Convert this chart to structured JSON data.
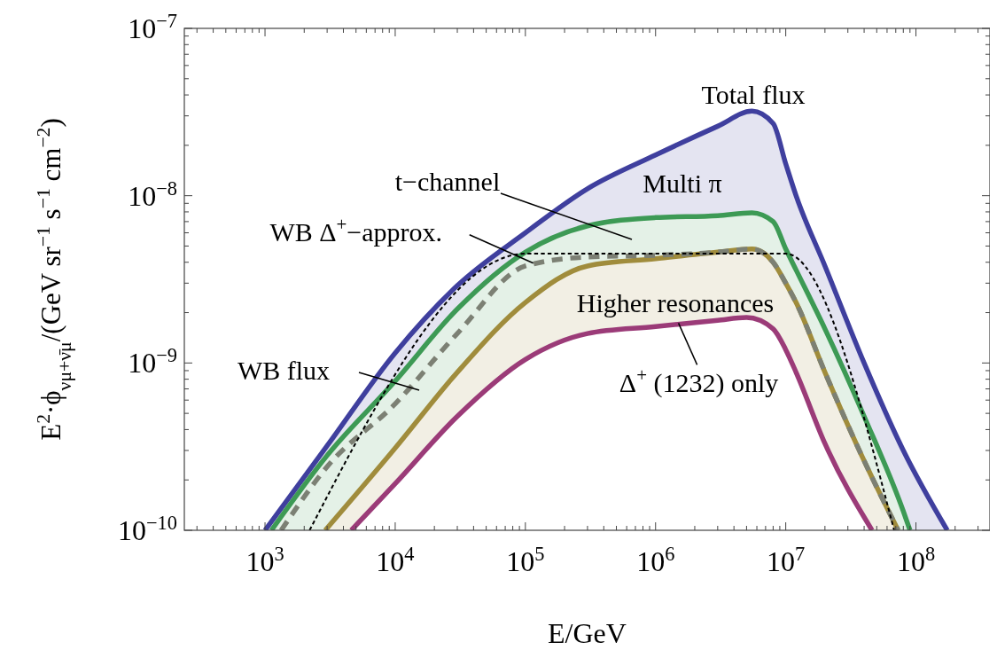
{
  "chart_data": {
    "type": "line",
    "xlabel": "E/GeV",
    "ylabel": "E$^{2}$·ϕ$_{νμ+ν̄μ}$/(GeV sr$^{−1}$ s$^{−1}$ cm$^{−2}$)",
    "log": "xy",
    "grid": false,
    "xlim": [
      240,
      370000000
    ],
    "ylim": [
      1e-10,
      1e-07
    ],
    "xticks": [
      {
        "value": 300,
        "label": null
      },
      {
        "value": 400,
        "label": null
      },
      {
        "value": 500,
        "label": null
      },
      {
        "value": 600,
        "label": null
      },
      {
        "value": 700,
        "label": null
      },
      {
        "value": 800,
        "label": null
      },
      {
        "value": 900,
        "label": null
      },
      {
        "value": 1000,
        "label": "10$^{3}$"
      },
      {
        "value": 2000,
        "label": null
      },
      {
        "value": 3000,
        "label": null
      },
      {
        "value": 4000,
        "label": null
      },
      {
        "value": 5000,
        "label": null
      },
      {
        "value": 6000,
        "label": null
      },
      {
        "value": 7000,
        "label": null
      },
      {
        "value": 8000,
        "label": null
      },
      {
        "value": 9000,
        "label": null
      },
      {
        "value": 10000,
        "label": "10$^{4}$"
      },
      {
        "value": 20000,
        "label": null
      },
      {
        "value": 30000,
        "label": null
      },
      {
        "value": 40000,
        "label": null
      },
      {
        "value": 50000,
        "label": null
      },
      {
        "value": 60000,
        "label": null
      },
      {
        "value": 70000,
        "label": null
      },
      {
        "value": 80000,
        "label": null
      },
      {
        "value": 90000,
        "label": null
      },
      {
        "value": 100000,
        "label": "10$^{5}$"
      },
      {
        "value": 200000,
        "label": null
      },
      {
        "value": 300000,
        "label": null
      },
      {
        "value": 400000,
        "label": null
      },
      {
        "value": 500000,
        "label": null
      },
      {
        "value": 600000,
        "label": null
      },
      {
        "value": 700000,
        "label": null
      },
      {
        "value": 800000,
        "label": null
      },
      {
        "value": 900000,
        "label": null
      },
      {
        "value": 1000000,
        "label": "10$^{6}$"
      },
      {
        "value": 2000000,
        "label": null
      },
      {
        "value": 3000000,
        "label": null
      },
      {
        "value": 4000000,
        "label": null
      },
      {
        "value": 5000000,
        "label": null
      },
      {
        "value": 6000000,
        "label": null
      },
      {
        "value": 7000000,
        "label": null
      },
      {
        "value": 8000000,
        "label": null
      },
      {
        "value": 9000000,
        "label": null
      },
      {
        "value": 10000000,
        "label": "10$^{7}$"
      },
      {
        "value": 20000000,
        "label": null
      },
      {
        "value": 30000000,
        "label": null
      },
      {
        "value": 40000000,
        "label": null
      },
      {
        "value": 50000000,
        "label": null
      },
      {
        "value": 60000000,
        "label": null
      },
      {
        "value": 70000000,
        "label": null
      },
      {
        "value": 80000000,
        "label": null
      },
      {
        "value": 90000000,
        "label": null
      },
      {
        "value": 100000000,
        "label": "10$^{8}$"
      },
      {
        "value": 200000000,
        "label": null
      },
      {
        "value": 300000000,
        "label": null
      }
    ],
    "yticks": [
      {
        "value": 1e-10,
        "label": "10$^{−10}$"
      },
      {
        "value": 2e-10,
        "label": null
      },
      {
        "value": 3e-10,
        "label": null
      },
      {
        "value": 4e-10,
        "label": null
      },
      {
        "value": 5e-10,
        "label": null
      },
      {
        "value": 6e-10,
        "label": null
      },
      {
        "value": 7e-10,
        "label": null
      },
      {
        "value": 8e-10,
        "label": null
      },
      {
        "value": 9e-10,
        "label": null
      },
      {
        "value": 1e-09,
        "label": "10$^{−9}$"
      },
      {
        "value": 2e-09,
        "label": null
      },
      {
        "value": 3e-09,
        "label": null
      },
      {
        "value": 4e-09,
        "label": null
      },
      {
        "value": 5e-09,
        "label": null
      },
      {
        "value": 6e-09,
        "label": null
      },
      {
        "value": 7e-09,
        "label": null
      },
      {
        "value": 8e-09,
        "label": null
      },
      {
        "value": 9e-09,
        "label": null
      },
      {
        "value": 1e-08,
        "label": "10$^{−8}$"
      },
      {
        "value": 2e-08,
        "label": null
      },
      {
        "value": 3e-08,
        "label": null
      },
      {
        "value": 4e-08,
        "label": null
      },
      {
        "value": 5e-08,
        "label": null
      },
      {
        "value": 6e-08,
        "label": null
      },
      {
        "value": 7e-08,
        "label": null
      },
      {
        "value": 8e-08,
        "label": null
      },
      {
        "value": 9e-08,
        "label": null
      },
      {
        "value": 1e-07,
        "label": "10$^{−7}$"
      }
    ],
    "series": [
      {
        "type": "area",
        "color": "#3f3f9e",
        "x": [
          1000,
          3000,
          10000,
          30000,
          100000,
          300000,
          1000000,
          3000000,
          5500000,
          8000000,
          10000000,
          12000000,
          20000000,
          40000000,
          80000000,
          174000000
        ],
        "values": [
          1e-10,
          3.2e-10,
          1.15e-09,
          2.9e-09,
          6e-09,
          1.1e-08,
          1.75e-08,
          2.6e-08,
          3.2e-08,
          2.7e-08,
          1.55e-08,
          1e-08,
          3.8e-09,
          1e-09,
          3e-10,
          1e-10
        ]
      },
      {
        "type": "area",
        "color": "#3d9a55",
        "x": [
          1120,
          3000,
          10000,
          30000,
          100000,
          300000,
          1000000,
          3000000,
          5500000,
          8000000,
          10000000,
          12000000,
          20000000,
          40000000,
          80000000,
          90000000
        ],
        "values": [
          1e-10,
          2.8e-10,
          7.8e-10,
          2.1e-09,
          4.6e-09,
          6.6e-09,
          7.4e-09,
          7.6e-09,
          7.9e-09,
          7e-09,
          4.8e-09,
          3.6e-09,
          1.6e-09,
          4.8e-10,
          1.3e-10,
          1e-10
        ]
      },
      {
        "type": "area",
        "color": "#a08c3c",
        "x": [
          2900,
          10000,
          30000,
          100000,
          300000,
          1000000,
          3000000,
          5500000,
          8000000,
          10000000,
          12000000,
          20000000,
          40000000,
          73000000
        ],
        "values": [
          1e-10,
          3.1e-10,
          8.8e-10,
          2.3e-09,
          3.8e-09,
          4.2e-09,
          4.6e-09,
          4.8e-09,
          4e-09,
          3e-09,
          2.3e-09,
          8.8e-10,
          2.6e-10,
          1e-10
        ]
      },
      {
        "color": "#9b3b78",
        "x": [
          4600,
          10000,
          30000,
          100000,
          300000,
          1000000,
          3000000,
          5000000,
          8000000,
          10000000,
          12000000,
          20000000,
          46000000
        ],
        "values": [
          1e-10,
          1.9e-10,
          4.8e-10,
          1.05e-09,
          1.5e-09,
          1.65e-09,
          1.8e-09,
          1.87e-09,
          1.6e-09,
          1.2e-09,
          8.8e-10,
          3.3e-10,
          1e-10
        ]
      },
      {
        "color": "#7c8074",
        "line_style": "dashed",
        "x": [
          1330,
          3000,
          10000,
          30000,
          100000,
          300000,
          1000000,
          3000000,
          5500000,
          8000000,
          10000000,
          12000000,
          20000000,
          40000000,
          73000000
        ],
        "values": [
          1e-10,
          2.4e-10,
          5.7e-10,
          1.5e-09,
          3.8e-09,
          4.3e-09,
          4.4e-09,
          4.6e-09,
          4.8e-09,
          4e-09,
          3e-09,
          2.3e-09,
          8.8e-10,
          2.6e-10,
          1e-10
        ]
      },
      {
        "color": "#000000",
        "line_style": "dashed",
        "x": [
          2200,
          100000,
          10000000,
          68000000
        ],
        "values": [
          1e-10,
          4.5e-09,
          4.5e-09,
          1e-10
        ]
      }
    ],
    "annotations": [
      "Total flux",
      "Multi π",
      "t−channel",
      {
        "text": "WB Δ$^{+}$−approx.",
        "x": 115000,
        "y": 3.95e-09
      },
      "Higher resonances",
      "WB flux",
      {
        "text": "Δ$^{+}$ (1232) only",
        "x": 1500000,
        "y": 1.73e-09
      }
    ]
  }
}
